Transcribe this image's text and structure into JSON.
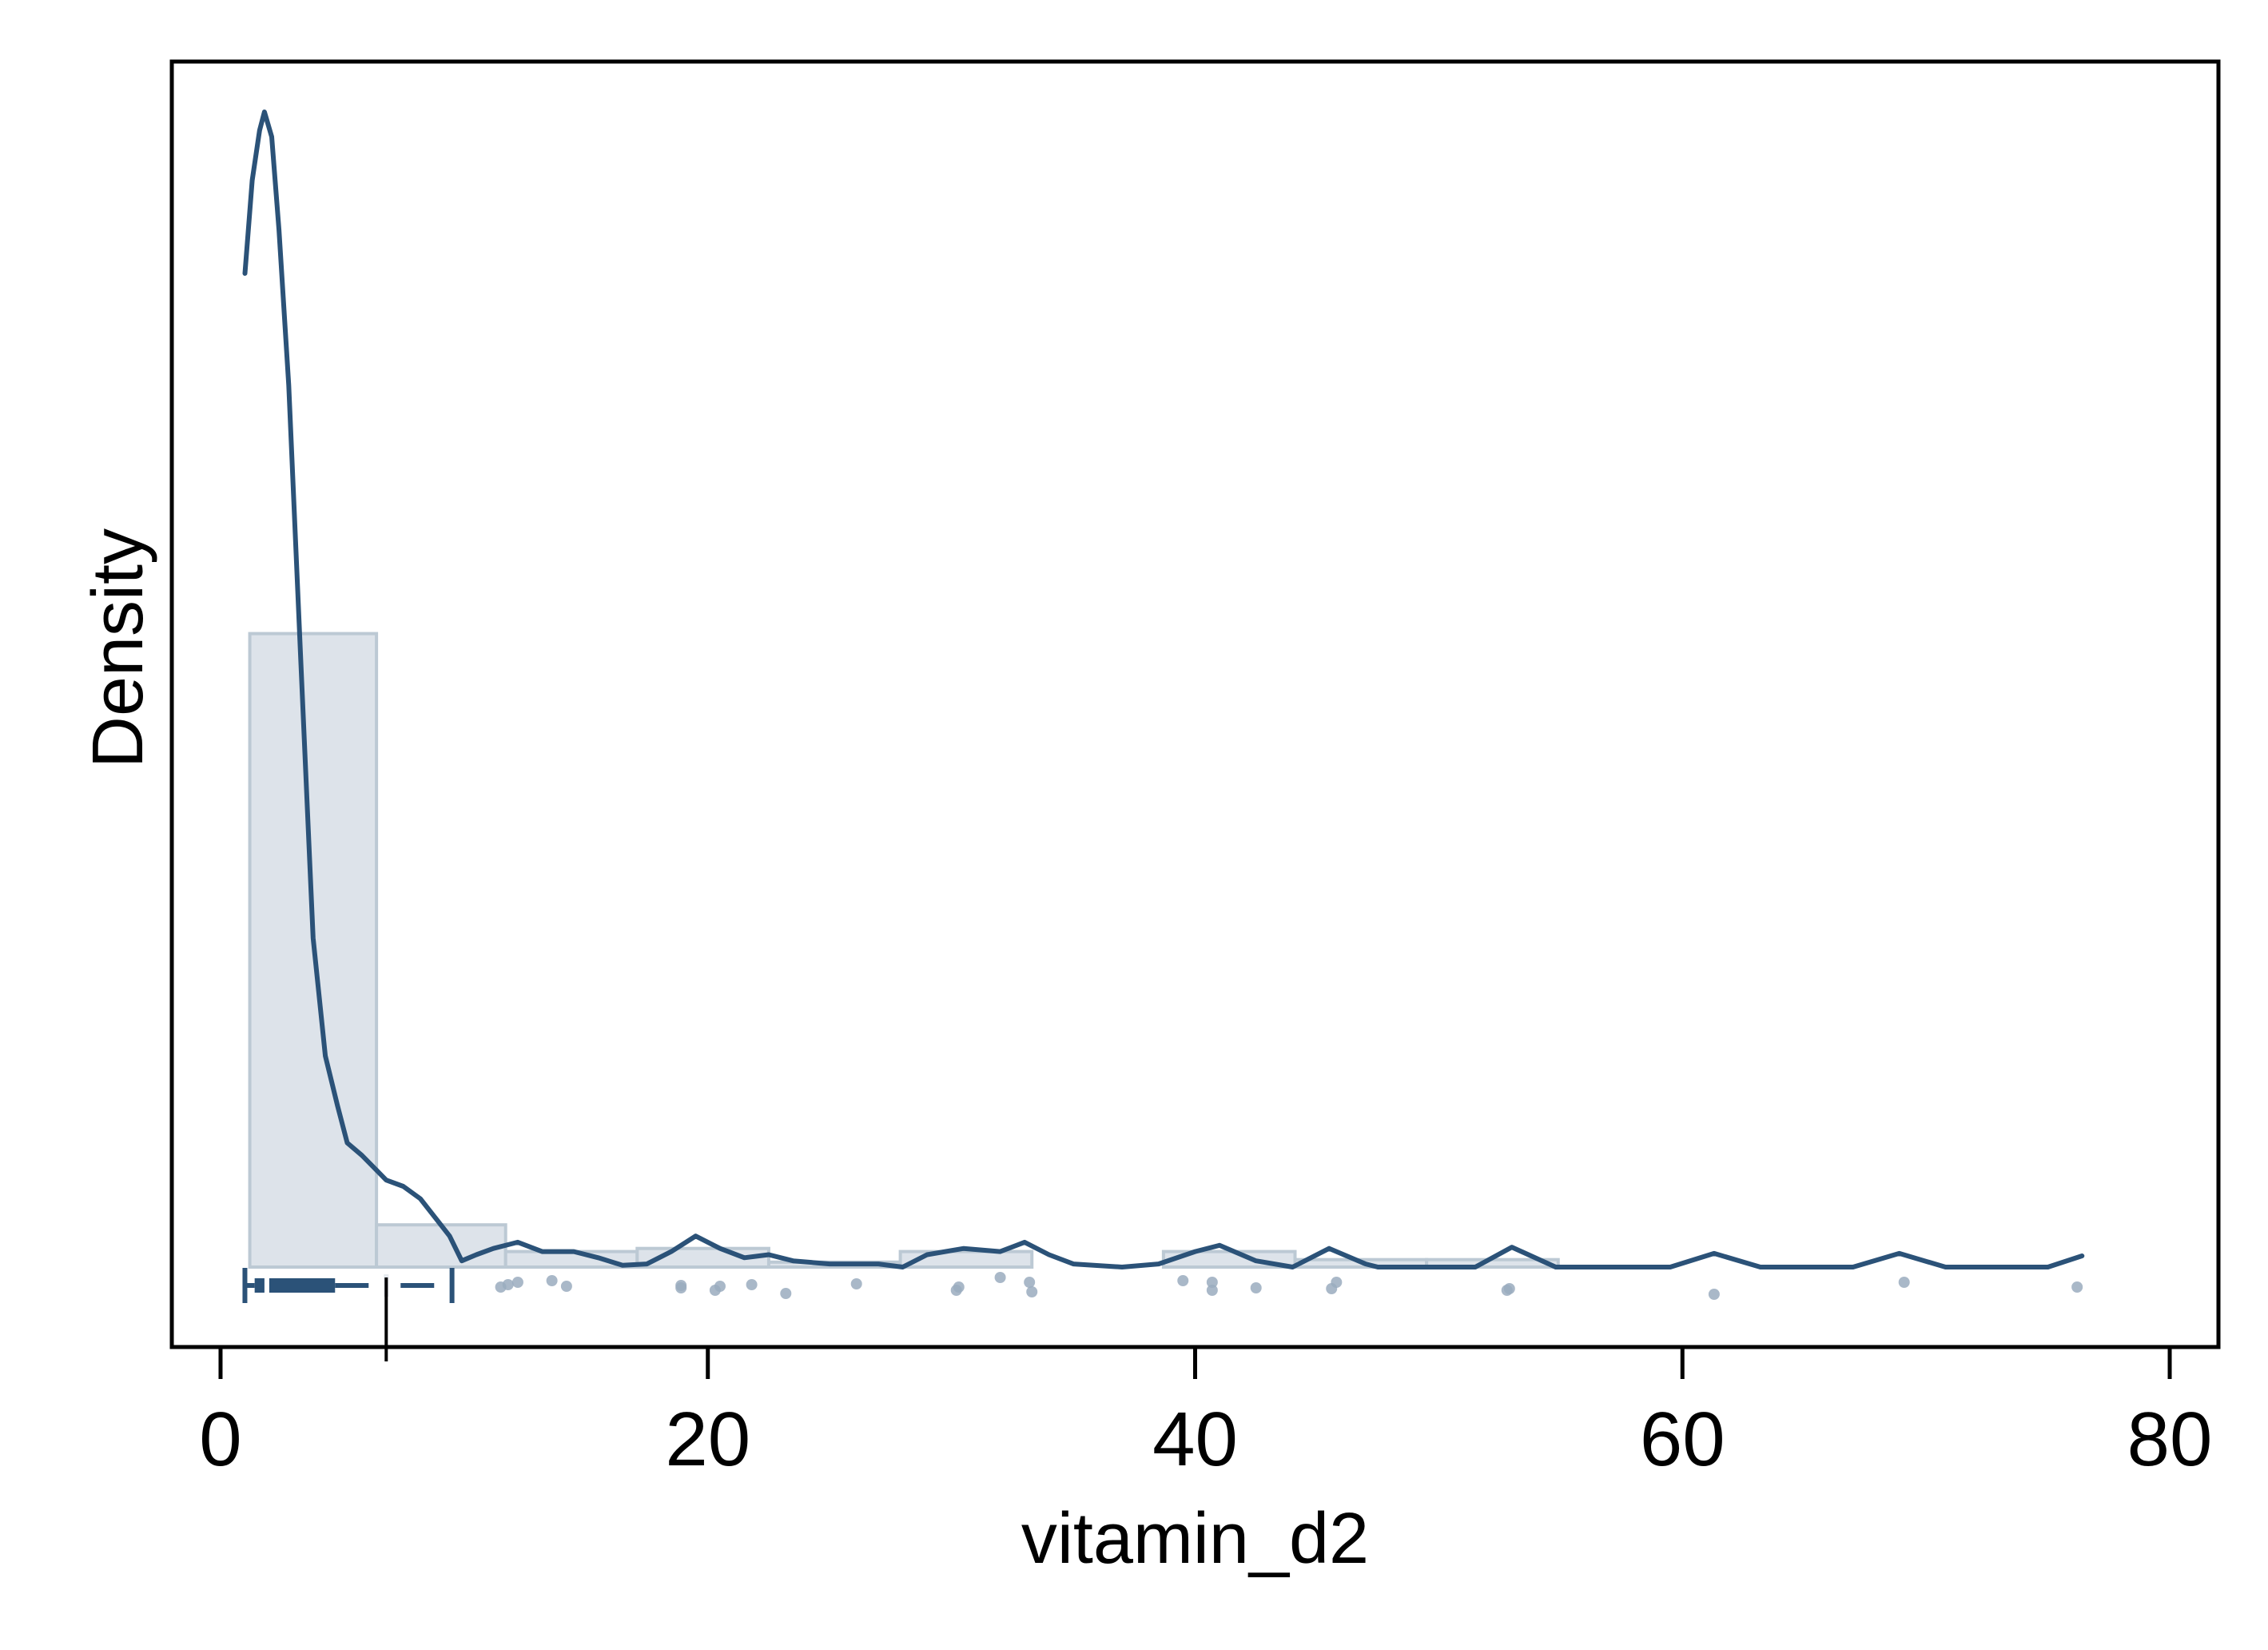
{
  "chart_data": {
    "type": "histogram",
    "xlabel": "vitamin_d2",
    "ylabel": "Density",
    "xlim": [
      -2,
      82
    ],
    "x_ticks": [
      0,
      20,
      40,
      60,
      80
    ],
    "y_ticks_shown": false,
    "histogram": {
      "bins": [
        {
          "x0": 1.2,
          "x1": 6.4,
          "density": 0.102
        },
        {
          "x0": 6.4,
          "x1": 11.7,
          "density": 0.0068
        },
        {
          "x0": 11.7,
          "x1": 17.1,
          "density": 0.0025
        },
        {
          "x0": 17.1,
          "x1": 22.5,
          "density": 0.003
        },
        {
          "x0": 22.5,
          "x1": 27.9,
          "density": 0.0008
        },
        {
          "x0": 27.9,
          "x1": 33.3,
          "density": 0.0025
        },
        {
          "x0": 33.3,
          "x1": 38.7,
          "density": 0.0
        },
        {
          "x0": 38.7,
          "x1": 44.1,
          "density": 0.0025
        },
        {
          "x0": 44.1,
          "x1": 49.5,
          "density": 0.0012
        },
        {
          "x0": 49.5,
          "x1": 54.9,
          "density": 0.0012
        },
        {
          "x0": 54.9,
          "x1": 76.4,
          "density": 0.0
        }
      ],
      "fill_color": "#dde3ea",
      "edge_color": "#bcc9d4"
    },
    "density_curve": {
      "color": "#2b5278",
      "points": [
        [
          1.0,
          0.16
        ],
        [
          1.3,
          0.175
        ],
        [
          1.6,
          0.183
        ],
        [
          1.8,
          0.186
        ],
        [
          2.1,
          0.182
        ],
        [
          2.4,
          0.167
        ],
        [
          2.8,
          0.142
        ],
        [
          3.3,
          0.097
        ],
        [
          3.8,
          0.053
        ],
        [
          4.3,
          0.034
        ],
        [
          4.8,
          0.026
        ],
        [
          5.2,
          0.02
        ],
        [
          5.8,
          0.018
        ],
        [
          6.3,
          0.016
        ],
        [
          6.8,
          0.014
        ],
        [
          7.5,
          0.013
        ],
        [
          8.2,
          0.011
        ],
        [
          8.8,
          0.008
        ],
        [
          9.4,
          0.005
        ],
        [
          9.9,
          0.001
        ],
        [
          10.5,
          0.002
        ],
        [
          11.2,
          0.003
        ],
        [
          12.2,
          0.004
        ],
        [
          13.2,
          0.0025
        ],
        [
          14.5,
          0.0025
        ],
        [
          15.5,
          0.0015
        ],
        [
          16.5,
          0.0003
        ],
        [
          17.5,
          0.0005
        ],
        [
          18.5,
          0.0025
        ],
        [
          19.5,
          0.005
        ],
        [
          20.5,
          0.003
        ],
        [
          21.5,
          0.0015
        ],
        [
          22.5,
          0.002
        ],
        [
          23.5,
          0.001
        ],
        [
          25.0,
          0.0005
        ],
        [
          27.0,
          0.0005
        ],
        [
          28.0,
          0.0
        ],
        [
          29.0,
          0.002
        ],
        [
          30.5,
          0.003
        ],
        [
          32.0,
          0.0025
        ],
        [
          33.0,
          0.004
        ],
        [
          34.0,
          0.002
        ],
        [
          35.0,
          0.0005
        ],
        [
          37.0,
          0.0
        ],
        [
          38.5,
          0.0005
        ],
        [
          40.0,
          0.0025
        ],
        [
          41.0,
          0.0035
        ],
        [
          42.5,
          0.001
        ],
        [
          44.0,
          0.0
        ],
        [
          45.5,
          0.003
        ],
        [
          47.0,
          0.0005
        ],
        [
          47.5,
          0.0
        ],
        [
          51.5,
          0.0
        ],
        [
          53.0,
          0.0032
        ],
        [
          54.8,
          0.0
        ],
        [
          59.5,
          0.0
        ],
        [
          61.3,
          0.0022
        ],
        [
          63.2,
          0.0
        ],
        [
          67.0,
          0.0
        ],
        [
          68.9,
          0.0022
        ],
        [
          70.8,
          0.0
        ],
        [
          75.0,
          0.0
        ],
        [
          76.4,
          0.0018
        ]
      ]
    },
    "boxplot": {
      "min": 1.0,
      "q1": 1.4,
      "median": 1.9,
      "q3": 4.7,
      "whisker_high": 9.5,
      "mean": 6.8,
      "color": "#2b5278"
    },
    "rug_points": [
      {
        "x": 11.5,
        "y_jitter": 0.0
      },
      {
        "x": 11.8,
        "y_jitter": 0.3
      },
      {
        "x": 12.2,
        "y_jitter": 0.6
      },
      {
        "x": 13.6,
        "y_jitter": 0.8
      },
      {
        "x": 14.2,
        "y_jitter": 0.1
      },
      {
        "x": 18.9,
        "y_jitter": 0.2
      },
      {
        "x": 18.9,
        "y_jitter": -0.1
      },
      {
        "x": 20.3,
        "y_jitter": -0.4
      },
      {
        "x": 20.5,
        "y_jitter": 0.1
      },
      {
        "x": 21.8,
        "y_jitter": 0.3
      },
      {
        "x": 23.2,
        "y_jitter": -0.8
      },
      {
        "x": 26.1,
        "y_jitter": 0.4
      },
      {
        "x": 30.2,
        "y_jitter": -0.4
      },
      {
        "x": 30.3,
        "y_jitter": 0.0
      },
      {
        "x": 32.0,
        "y_jitter": 1.2
      },
      {
        "x": 33.2,
        "y_jitter": 0.6
      },
      {
        "x": 33.3,
        "y_jitter": -0.6
      },
      {
        "x": 39.5,
        "y_jitter": 0.8
      },
      {
        "x": 40.7,
        "y_jitter": 0.6
      },
      {
        "x": 40.7,
        "y_jitter": -0.4
      },
      {
        "x": 42.5,
        "y_jitter": -0.1
      },
      {
        "x": 45.6,
        "y_jitter": -0.2
      },
      {
        "x": 45.8,
        "y_jitter": 0.6
      },
      {
        "x": 52.8,
        "y_jitter": -0.4
      },
      {
        "x": 52.9,
        "y_jitter": -0.2
      },
      {
        "x": 61.3,
        "y_jitter": -0.9
      },
      {
        "x": 69.1,
        "y_jitter": 0.6
      },
      {
        "x": 76.2,
        "y_jitter": 0.0
      }
    ],
    "rug_color": "#9aacbe",
    "grid": false
  }
}
